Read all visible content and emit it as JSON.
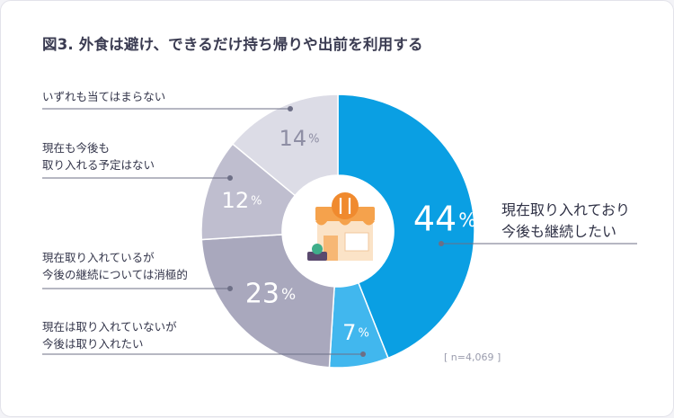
{
  "title": "図3. 外食は避け、できるだけ持ち帰りや出前を利用する",
  "note": "[ n=4,069 ]",
  "colors": {
    "continue": "#0a9fe3",
    "want": "#41b7ee",
    "negative": "#a9a8bd",
    "no_plan": "#bfbecf",
    "none": "#dcdce6",
    "line": "#6d6f86",
    "pct_dark": "#ffffff",
    "pct_light": "#8e8ea4"
  },
  "chart_data": {
    "type": "pie",
    "donut": true,
    "start_angle_deg": 0,
    "direction": "clockwise",
    "slices": [
      {
        "label": "現在取り入れており\n今後も継続したい",
        "value": 44,
        "value_label": "44",
        "unit": "%"
      },
      {
        "label": "現在は取り入れていないが\n今後は取り入れたい",
        "value": 7,
        "value_label": "7",
        "unit": "%"
      },
      {
        "label": "現在取り入れているが\n今後の継続については消極的",
        "value": 23,
        "value_label": "23",
        "unit": "%"
      },
      {
        "label": "現在も今後も\n取り入れる予定はない",
        "value": 12,
        "value_label": "12",
        "unit": "%"
      },
      {
        "label": "いずれも当てはまらない",
        "value": 14,
        "value_label": "14",
        "unit": "%"
      }
    ]
  },
  "icon": "restaurant-storefront-icon"
}
